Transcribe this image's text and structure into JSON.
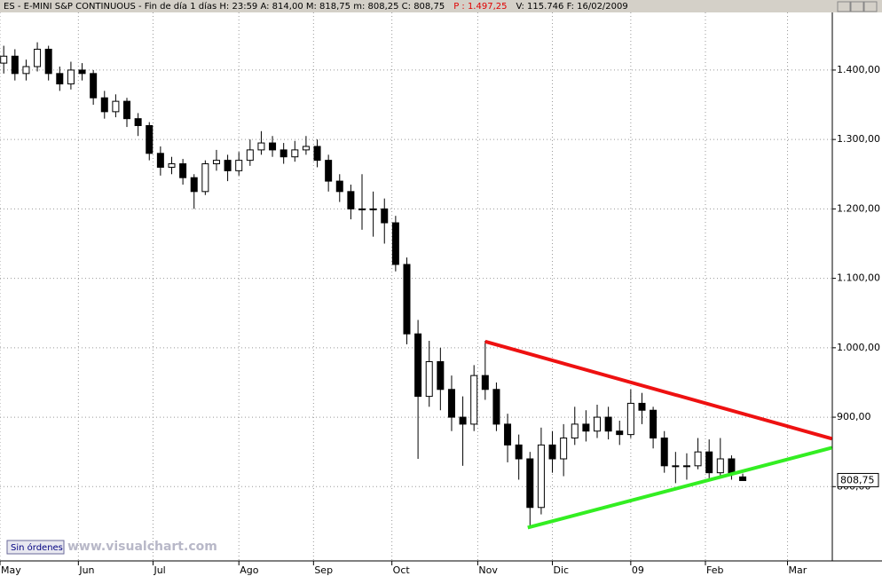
{
  "header": {
    "text": "ES - E-MINI S&P CONTINUOUS - Fin de día 1 días  H: 23:59  A: 814,00  M: 818,75  m: 808,25  C: 808,75",
    "p_text": "P : 1.497,25",
    "rest": "V: 115.746  F: 16/02/2009"
  },
  "footer": {
    "button": "Sin órdenes",
    "watermark": "www.visualchart.com"
  },
  "chart_data": {
    "type": "candlestick",
    "x": [
      1,
      4,
      7,
      10,
      13,
      16,
      19,
      22,
      25,
      28,
      31,
      34,
      37,
      40,
      43,
      46,
      49,
      52,
      55,
      58,
      61,
      64,
      67,
      70,
      73,
      76,
      79,
      82,
      85,
      88,
      91,
      94,
      97,
      100,
      103,
      106,
      109,
      112,
      115,
      118,
      121,
      124,
      127,
      130,
      133,
      136,
      139,
      142,
      145,
      148,
      151,
      154,
      157,
      160,
      163,
      166,
      169,
      172,
      175,
      178,
      181,
      184,
      187,
      190,
      193,
      196,
      199
    ],
    "open": [
      1410,
      1420,
      1395,
      1405,
      1430,
      1395,
      1380,
      1400,
      1395,
      1360,
      1340,
      1355,
      1330,
      1320,
      1280,
      1260,
      1265,
      1245,
      1225,
      1265,
      1270,
      1255,
      1270,
      1285,
      1295,
      1285,
      1275,
      1285,
      1290,
      1270,
      1240,
      1225,
      1200,
      1200,
      1200,
      1180,
      1120,
      1020,
      930,
      980,
      940,
      900,
      890,
      960,
      940,
      890,
      860,
      840,
      770,
      860,
      840,
      870,
      890,
      880,
      900,
      880,
      875,
      920,
      910,
      870,
      830,
      830,
      830,
      850,
      820,
      840,
      814
    ],
    "high": [
      1435,
      1430,
      1415,
      1440,
      1435,
      1405,
      1412,
      1410,
      1400,
      1370,
      1365,
      1360,
      1338,
      1325,
      1290,
      1275,
      1272,
      1250,
      1270,
      1285,
      1278,
      1282,
      1300,
      1312,
      1305,
      1295,
      1298,
      1305,
      1300,
      1278,
      1250,
      1235,
      1250,
      1225,
      1215,
      1190,
      1130,
      1040,
      1010,
      1000,
      960,
      930,
      975,
      1010,
      950,
      905,
      875,
      850,
      885,
      880,
      890,
      915,
      910,
      918,
      915,
      895,
      940,
      935,
      915,
      880,
      850,
      848,
      870,
      868,
      870,
      845,
      818.75
    ],
    "low": [
      1395,
      1385,
      1385,
      1398,
      1385,
      1370,
      1372,
      1385,
      1350,
      1330,
      1332,
      1318,
      1305,
      1270,
      1248,
      1250,
      1235,
      1200,
      1220,
      1255,
      1240,
      1248,
      1262,
      1278,
      1275,
      1265,
      1268,
      1278,
      1260,
      1225,
      1210,
      1185,
      1170,
      1160,
      1150,
      1110,
      1005,
      840,
      915,
      910,
      880,
      830,
      880,
      925,
      880,
      835,
      810,
      740,
      760,
      820,
      815,
      860,
      865,
      870,
      868,
      860,
      870,
      890,
      855,
      820,
      805,
      810,
      825,
      812,
      815,
      810,
      808.25
    ],
    "close": [
      1420,
      1395,
      1405,
      1430,
      1395,
      1380,
      1400,
      1395,
      1360,
      1340,
      1355,
      1330,
      1320,
      1280,
      1260,
      1265,
      1245,
      1225,
      1265,
      1270,
      1255,
      1270,
      1285,
      1295,
      1285,
      1275,
      1285,
      1290,
      1270,
      1240,
      1225,
      1200,
      1200,
      1200,
      1180,
      1120,
      1020,
      930,
      980,
      940,
      900,
      890,
      960,
      940,
      890,
      860,
      840,
      770,
      860,
      840,
      870,
      890,
      880,
      900,
      880,
      875,
      920,
      910,
      870,
      830,
      830,
      830,
      850,
      820,
      840,
      820,
      808.75
    ],
    "xlim": [
      0,
      223
    ],
    "ylim": [
      693,
      1483
    ],
    "xticks": [
      {
        "value": 0,
        "label": "May"
      },
      {
        "value": 21,
        "label": "Jun"
      },
      {
        "value": 41,
        "label": "Jul"
      },
      {
        "value": 64,
        "label": "Ago"
      },
      {
        "value": 84,
        "label": "Sep"
      },
      {
        "value": 105,
        "label": "Oct"
      },
      {
        "value": 128,
        "label": "Nov"
      },
      {
        "value": 148,
        "label": "Dic"
      },
      {
        "value": 169,
        "label": "09"
      },
      {
        "value": 189,
        "label": "Feb"
      },
      {
        "value": 211,
        "label": "Mar"
      }
    ],
    "yticks": [
      {
        "value": 800,
        "label": "800,00"
      },
      {
        "value": 900,
        "label": "900,00"
      },
      {
        "value": 1000,
        "label": "1.000,00"
      },
      {
        "value": 1100,
        "label": "1.100,00"
      },
      {
        "value": 1200,
        "label": "1.200,00"
      },
      {
        "value": 1300,
        "label": "1.300,00"
      },
      {
        "value": 1400,
        "label": "1.400,00"
      }
    ],
    "last_price": {
      "value": 808.75,
      "label": "808,75"
    },
    "grid": true,
    "up_color": "#ffffff",
    "down_color": "#000000",
    "lines": [
      {
        "color": "#ee1111",
        "x": [
          130,
          222.9
        ],
        "y": [
          1009,
          869
        ]
      },
      {
        "color": "#33ee22",
        "x": [
          141.4,
          222.9
        ],
        "y": [
          741,
          856
        ]
      }
    ]
  }
}
